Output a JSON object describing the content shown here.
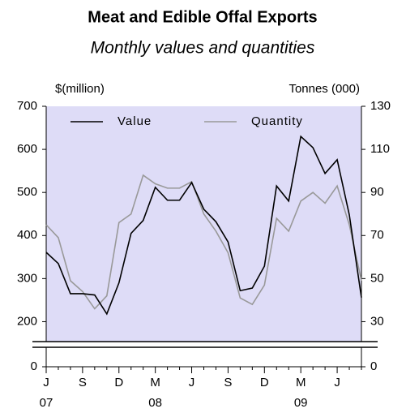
{
  "chart_data": {
    "type": "line",
    "title": "Meat and Edible Offal Exports",
    "subtitle": "Monthly values and quantities",
    "ylabel": "$(million)",
    "y2label": "Tonnes (000)",
    "categories": [
      "J",
      null,
      null,
      "S",
      null,
      null,
      "D",
      null,
      null,
      "M",
      null,
      null,
      "J",
      null,
      null,
      "S",
      null,
      null,
      "D",
      null,
      null,
      "M",
      null,
      null,
      "J",
      null,
      null
    ],
    "x_groups": [
      {
        "label": "07",
        "start": 0
      },
      {
        "label": "08",
        "start": 9
      },
      {
        "label": "09",
        "start": 21
      }
    ],
    "series": [
      {
        "name": "Value",
        "color": "#000000",
        "axis": "y",
        "values": [
          361,
          335,
          265,
          265,
          262,
          218,
          290,
          405,
          435,
          512,
          482,
          482,
          523,
          461,
          432,
          385,
          272,
          278,
          329,
          515,
          480,
          630,
          604,
          544,
          576,
          448,
          256
        ]
      },
      {
        "name": "Quantity",
        "color": "#999999",
        "axis": "y2",
        "values": [
          75,
          69,
          49,
          44,
          36,
          42,
          76,
          80,
          98,
          94,
          92,
          92,
          95,
          80,
          72,
          62,
          41,
          38,
          47,
          78,
          72,
          86,
          90,
          85,
          93,
          75,
          49
        ]
      }
    ],
    "ylim": [
      150,
      700
    ],
    "yticks": [
      0,
      200,
      300,
      400,
      500,
      600,
      700
    ],
    "y2lim": [
      20,
      130
    ],
    "y2ticks": [
      0,
      30,
      50,
      70,
      90,
      110,
      130
    ],
    "axis_break": true,
    "legend": "upper left",
    "background": "#dedcf7"
  }
}
